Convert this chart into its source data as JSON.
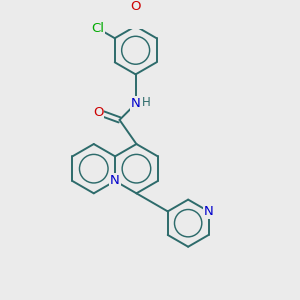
{
  "bg_color": "#ebebeb",
  "bond_color": "#2d6b6b",
  "bond_width": 1.4,
  "atom_colors": {
    "N": "#0000cc",
    "O": "#cc0000",
    "Cl": "#00aa00"
  },
  "font_size": 8.5,
  "fig_size": [
    3.0,
    3.0
  ],
  "dpi": 100
}
